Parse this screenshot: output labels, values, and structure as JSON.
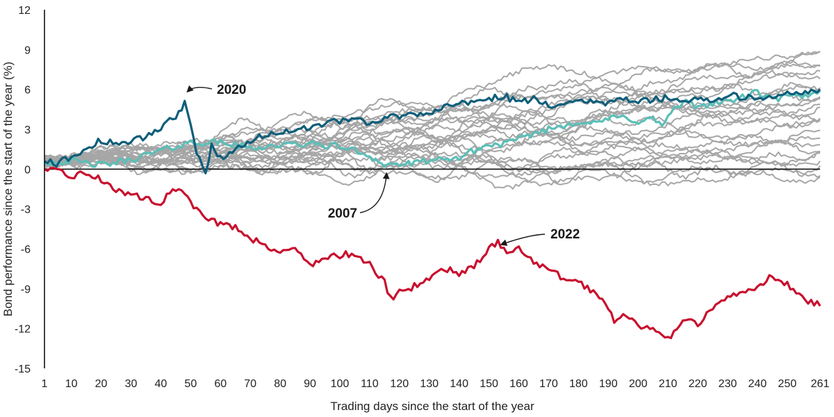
{
  "chart_data": {
    "type": "line",
    "title": "",
    "xlabel": "Trading days since the start of the year",
    "ylabel": "Bond performance since the start of the year (%)",
    "xlim": [
      1,
      261
    ],
    "ylim": [
      -15,
      12
    ],
    "x_ticks": [
      1,
      10,
      20,
      30,
      40,
      50,
      60,
      70,
      80,
      90,
      100,
      110,
      120,
      130,
      140,
      150,
      160,
      170,
      180,
      190,
      200,
      210,
      220,
      230,
      240,
      250,
      261
    ],
    "y_ticks": [
      -15,
      -12,
      -9,
      -6,
      -3,
      0,
      3,
      6,
      9,
      12
    ],
    "grid": false,
    "legend": "none",
    "colors": {
      "background_years": "#a6a6a6",
      "y2022": "#c8102e",
      "y2020": "#0e5e7a",
      "y2007": "#5bbfb8",
      "zero_line": "#000000"
    },
    "highlighted_series": [
      {
        "name": "2022",
        "color": "#c8102e",
        "points": [
          [
            1,
            0
          ],
          [
            5,
            -0.2
          ],
          [
            10,
            -0.5
          ],
          [
            15,
            -0.3
          ],
          [
            20,
            -0.8
          ],
          [
            25,
            -1.5
          ],
          [
            30,
            -2.0
          ],
          [
            35,
            -2.2
          ],
          [
            40,
            -2.5
          ],
          [
            45,
            -1.4
          ],
          [
            48,
            -2.0
          ],
          [
            50,
            -2.6
          ],
          [
            55,
            -3.5
          ],
          [
            60,
            -4.2
          ],
          [
            65,
            -4.3
          ],
          [
            70,
            -5.2
          ],
          [
            75,
            -5.7
          ],
          [
            80,
            -6.2
          ],
          [
            85,
            -6.0
          ],
          [
            90,
            -7.2
          ],
          [
            95,
            -6.7
          ],
          [
            100,
            -6.5
          ],
          [
            105,
            -6.3
          ],
          [
            110,
            -7.2
          ],
          [
            115,
            -8.5
          ],
          [
            117,
            -9.8
          ],
          [
            120,
            -9.3
          ],
          [
            125,
            -8.8
          ],
          [
            130,
            -8.2
          ],
          [
            135,
            -7.5
          ],
          [
            140,
            -7.8
          ],
          [
            145,
            -7.3
          ],
          [
            150,
            -6.0
          ],
          [
            153,
            -5.5
          ],
          [
            156,
            -6.2
          ],
          [
            160,
            -5.9
          ],
          [
            165,
            -7.0
          ],
          [
            170,
            -7.6
          ],
          [
            175,
            -8.2
          ],
          [
            180,
            -8.6
          ],
          [
            185,
            -9.2
          ],
          [
            190,
            -10.3
          ],
          [
            192,
            -11.4
          ],
          [
            195,
            -10.8
          ],
          [
            200,
            -11.7
          ],
          [
            205,
            -12.2
          ],
          [
            210,
            -12.8
          ],
          [
            215,
            -11.2
          ],
          [
            220,
            -11.8
          ],
          [
            225,
            -10.5
          ],
          [
            230,
            -9.7
          ],
          [
            235,
            -9.2
          ],
          [
            240,
            -8.8
          ],
          [
            245,
            -8.0
          ],
          [
            250,
            -8.7
          ],
          [
            255,
            -9.7
          ],
          [
            261,
            -10.3
          ]
        ]
      },
      {
        "name": "2020",
        "color": "#0e5e7a",
        "points": [
          [
            1,
            0.6
          ],
          [
            5,
            0.4
          ],
          [
            10,
            0.9
          ],
          [
            15,
            1.5
          ],
          [
            20,
            2.2
          ],
          [
            25,
            1.9
          ],
          [
            30,
            2.0
          ],
          [
            35,
            2.5
          ],
          [
            40,
            3.0
          ],
          [
            45,
            4.0
          ],
          [
            48,
            5.0
          ],
          [
            50,
            3.2
          ],
          [
            52,
            1.2
          ],
          [
            55,
            -0.4
          ],
          [
            57,
            1.8
          ],
          [
            60,
            0.8
          ],
          [
            65,
            1.6
          ],
          [
            70,
            2.2
          ],
          [
            75,
            2.5
          ],
          [
            80,
            2.8
          ],
          [
            85,
            3.0
          ],
          [
            90,
            3.2
          ],
          [
            95,
            3.5
          ],
          [
            100,
            3.6
          ],
          [
            105,
            3.8
          ],
          [
            110,
            3.3
          ],
          [
            115,
            3.9
          ],
          [
            120,
            4.0
          ],
          [
            125,
            4.2
          ],
          [
            130,
            4.3
          ],
          [
            135,
            4.6
          ],
          [
            140,
            4.9
          ],
          [
            145,
            5.0
          ],
          [
            150,
            5.3
          ],
          [
            155,
            5.5
          ],
          [
            160,
            5.0
          ],
          [
            165,
            5.3
          ],
          [
            170,
            4.8
          ],
          [
            175,
            5.0
          ],
          [
            180,
            5.2
          ],
          [
            185,
            5.1
          ],
          [
            190,
            5.0
          ],
          [
            195,
            5.2
          ],
          [
            200,
            5.1
          ],
          [
            205,
            5.2
          ],
          [
            210,
            5.4
          ],
          [
            215,
            4.9
          ],
          [
            220,
            5.5
          ],
          [
            225,
            5.2
          ],
          [
            230,
            5.6
          ],
          [
            235,
            5.4
          ],
          [
            240,
            5.5
          ],
          [
            245,
            5.3
          ],
          [
            250,
            5.7
          ],
          [
            255,
            5.8
          ],
          [
            261,
            6.0
          ]
        ]
      },
      {
        "name": "2007",
        "color": "#5bbfb8",
        "points": [
          [
            1,
            0.5
          ],
          [
            10,
            0.6
          ],
          [
            20,
            0.3
          ],
          [
            30,
            0.7
          ],
          [
            40,
            1.4
          ],
          [
            50,
            2.0
          ],
          [
            60,
            2.0
          ],
          [
            70,
            1.6
          ],
          [
            80,
            1.8
          ],
          [
            90,
            1.9
          ],
          [
            100,
            1.7
          ],
          [
            105,
            1.4
          ],
          [
            110,
            1.0
          ],
          [
            115,
            0.3
          ],
          [
            120,
            0.4
          ],
          [
            125,
            0.4
          ],
          [
            130,
            0.7
          ],
          [
            135,
            0.6
          ],
          [
            140,
            0.9
          ],
          [
            145,
            1.4
          ],
          [
            150,
            1.8
          ],
          [
            155,
            1.9
          ],
          [
            160,
            2.2
          ],
          [
            165,
            2.7
          ],
          [
            170,
            3.0
          ],
          [
            175,
            3.3
          ],
          [
            180,
            3.6
          ],
          [
            185,
            3.4
          ],
          [
            190,
            3.8
          ],
          [
            195,
            3.9
          ],
          [
            200,
            3.6
          ],
          [
            205,
            3.8
          ],
          [
            208,
            3.3
          ],
          [
            212,
            4.5
          ],
          [
            216,
            5.0
          ],
          [
            220,
            4.7
          ],
          [
            225,
            5.0
          ],
          [
            230,
            5.1
          ],
          [
            235,
            5.4
          ],
          [
            240,
            5.8
          ],
          [
            245,
            5.2
          ],
          [
            250,
            5.5
          ],
          [
            255,
            5.4
          ],
          [
            261,
            5.9
          ]
        ]
      }
    ],
    "background_series": [
      {
        "end": 9.0,
        "a": 0.6,
        "b": 0.2,
        "p": 3.0,
        "dev": 0
      },
      {
        "end": 8.6,
        "a": 0.9,
        "b": 0.3,
        "p": 4.0,
        "dev": 0
      },
      {
        "end": 8.2,
        "a": 1.2,
        "b": 0.4,
        "p": 5.0,
        "dev": 0
      },
      {
        "end": 7.8,
        "a": 0.5,
        "b": 0.3,
        "p": 3.5,
        "dev": 0
      },
      {
        "end": 7.4,
        "a": 0.8,
        "b": 0.2,
        "p": 4.5,
        "dev": 0
      },
      {
        "end": 6.9,
        "a": 1.0,
        "b": 0.4,
        "p": 2.5,
        "dev": 0
      },
      {
        "end": 6.4,
        "a": 0.7,
        "b": 0.3,
        "p": 6.0,
        "dev": 0
      },
      {
        "end": 6.0,
        "a": 1.1,
        "b": 0.2,
        "p": 3.2,
        "dev": 0
      },
      {
        "end": 5.6,
        "a": 0.6,
        "b": 0.4,
        "p": 5.5,
        "dev": 0
      },
      {
        "end": 5.2,
        "a": 0.9,
        "b": 0.3,
        "p": 4.2,
        "dev": 0
      },
      {
        "end": 4.8,
        "a": 1.3,
        "b": 0.2,
        "p": 2.8,
        "dev": 0
      },
      {
        "end": 4.4,
        "a": 0.5,
        "b": 0.4,
        "p": 5.8,
        "dev": 0
      },
      {
        "end": 4.0,
        "a": 0.8,
        "b": 0.3,
        "p": 3.8,
        "dev": 0
      },
      {
        "end": 3.6,
        "a": 1.0,
        "b": 0.2,
        "p": 4.8,
        "dev": 0
      },
      {
        "end": 3.2,
        "a": 0.7,
        "b": 0.4,
        "p": 2.2,
        "dev": 0
      },
      {
        "end": 2.6,
        "a": 0.9,
        "b": 0.3,
        "p": 5.2,
        "dev": 0
      },
      {
        "end": 2.1,
        "a": 0.6,
        "b": 0.2,
        "p": 3.4,
        "dev": 0
      },
      {
        "end": 1.6,
        "a": 1.1,
        "b": 0.4,
        "p": 4.4,
        "dev": 0
      },
      {
        "end": 1.0,
        "a": 0.8,
        "b": 0.3,
        "p": 6.2,
        "dev": 0
      },
      {
        "end": 0.5,
        "a": 0.6,
        "b": 0.2,
        "p": 2.6,
        "dev": 0
      },
      {
        "end": 0.0,
        "a": 0.9,
        "b": 0.4,
        "p": 5.6,
        "dev": 0
      },
      {
        "end": -0.4,
        "a": 0.7,
        "b": 0.3,
        "p": 3.6,
        "dev": 0
      },
      {
        "end": -0.8,
        "a": 1.0,
        "b": 0.2,
        "p": 4.6,
        "dev": 0
      },
      {
        "end": 5.0,
        "a": 0.5,
        "b": 0.2,
        "p": 2.0,
        "dev": 4.0
      },
      {
        "end": 2.0,
        "a": 0.6,
        "b": 0.3,
        "p": 3.0,
        "dev": -1.6
      },
      {
        "end": 0.8,
        "a": 0.5,
        "b": 0.3,
        "p": 4.0,
        "dev": -1.4
      }
    ],
    "annotations": [
      {
        "text": "2020",
        "x": 48,
        "y": 5.0
      },
      {
        "text": "2007",
        "x": 115,
        "y": 0.3
      },
      {
        "text": "2022",
        "x": 156,
        "y": -6.2
      }
    ]
  }
}
